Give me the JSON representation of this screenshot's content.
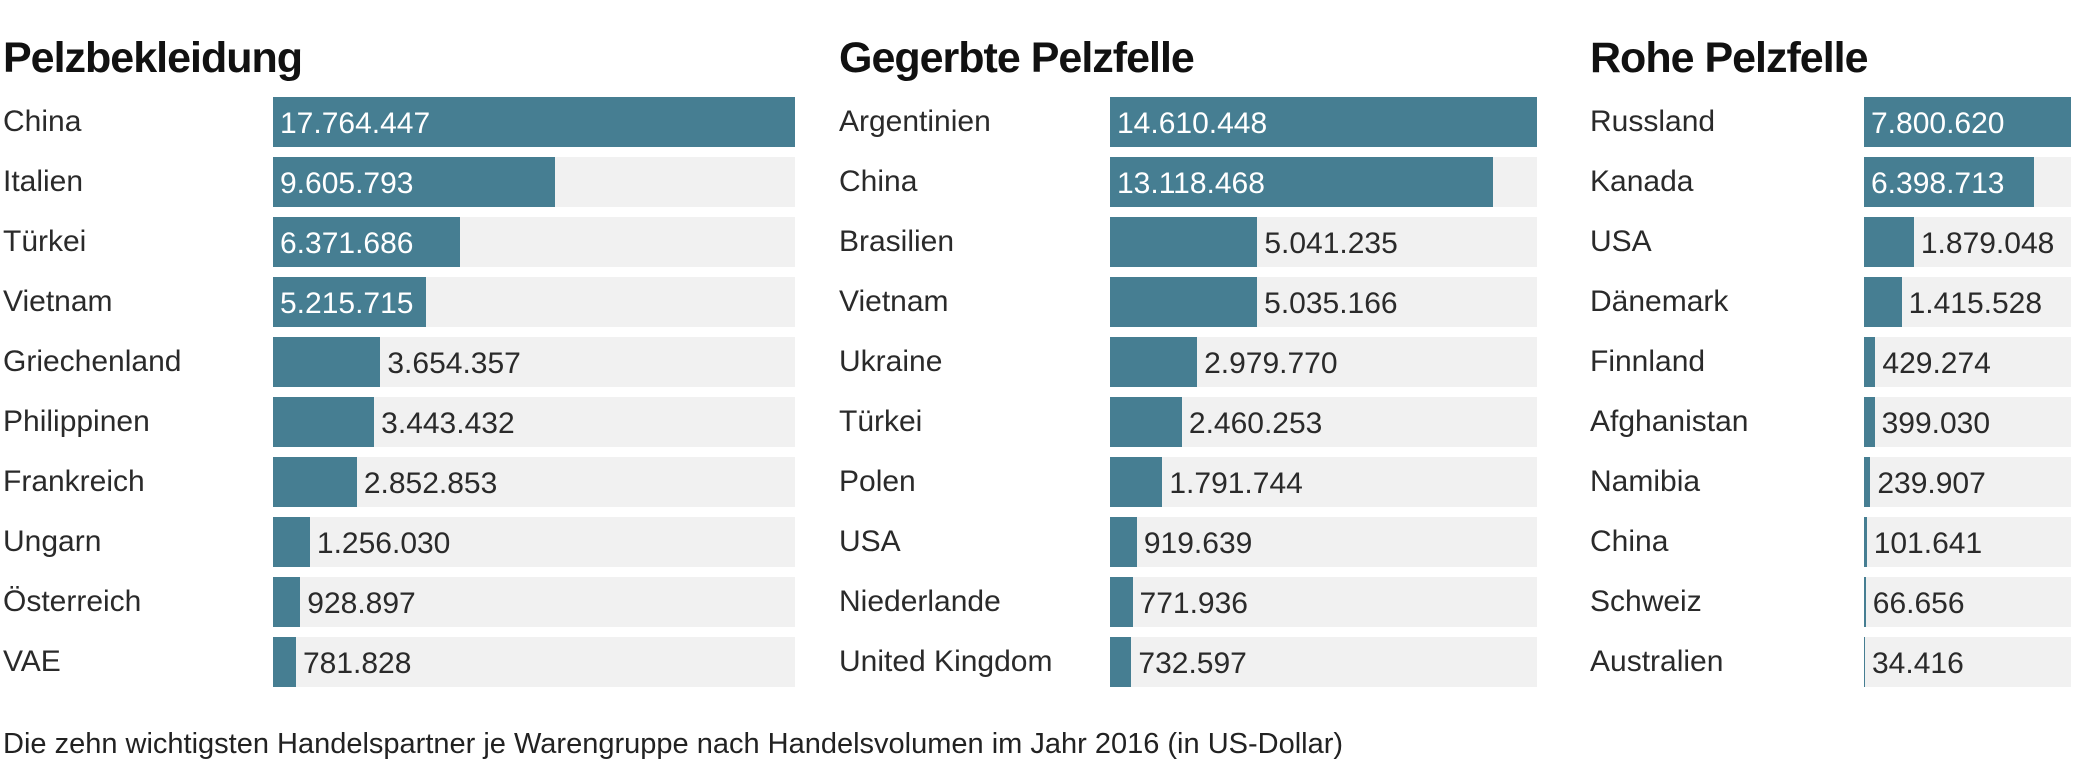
{
  "chart_data": [
    {
      "type": "bar",
      "orientation": "horizontal",
      "title": "Pelzbekleidung",
      "categories": [
        "China",
        "Italien",
        "Türkei",
        "Vietnam",
        "Griechenland",
        "Philippinen",
        "Frankreich",
        "Ungarn",
        "Österreich",
        "VAE"
      ],
      "values": [
        17764447,
        9605793,
        6371686,
        5215715,
        3654357,
        3443432,
        2852853,
        1256030,
        928897,
        781828
      ],
      "labels": [
        "17.764.447",
        "9.605.793",
        "6.371.686",
        "5.215.715",
        "3.654.357",
        "3.443.432",
        "2.852.853",
        "1.256.030",
        "928.897",
        "781.828"
      ]
    },
    {
      "type": "bar",
      "orientation": "horizontal",
      "title": "Gegerbte Pelzfelle",
      "categories": [
        "Argentinien",
        "China",
        "Brasilien",
        "Vietnam",
        "Ukraine",
        "Türkei",
        "Polen",
        "USA",
        "Niederlande",
        "United Kingdom"
      ],
      "values": [
        14610448,
        13118468,
        5041235,
        5035166,
        2979770,
        2460253,
        1791744,
        919639,
        771936,
        732597
      ],
      "labels": [
        "14.610.448",
        "13.118.468",
        "5.041.235",
        "5.035.166",
        "2.979.770",
        "2.460.253",
        "1.791.744",
        "919.639",
        "771.936",
        "732.597"
      ]
    },
    {
      "type": "bar",
      "orientation": "horizontal",
      "title": "Rohe Pelzfelle",
      "categories": [
        "Russland",
        "Kanada",
        "USA",
        "Dänemark",
        "Finnland",
        "Afghanistan",
        "Namibia",
        "China",
        "Schweiz",
        "Australien"
      ],
      "values": [
        7800620,
        6398713,
        1879048,
        1415528,
        429274,
        399030,
        239907,
        101641,
        66656,
        34416
      ],
      "labels": [
        "7.800.620",
        "6.398.713",
        "1.879.048",
        "1.415.528",
        "429.274",
        "399.030",
        "239.907",
        "101.641",
        "66.656",
        "34.416"
      ]
    }
  ],
  "colors": {
    "bar": "#467e92",
    "track": "#f1f1f1",
    "label_inside": "#ffffff",
    "label_outside": "#2a2a2a"
  },
  "footer": "Die zehn wichtigsten Handelspartner je Warengruppe nach Handelsvolumen im Jahr 2016 (in US-Dollar)"
}
